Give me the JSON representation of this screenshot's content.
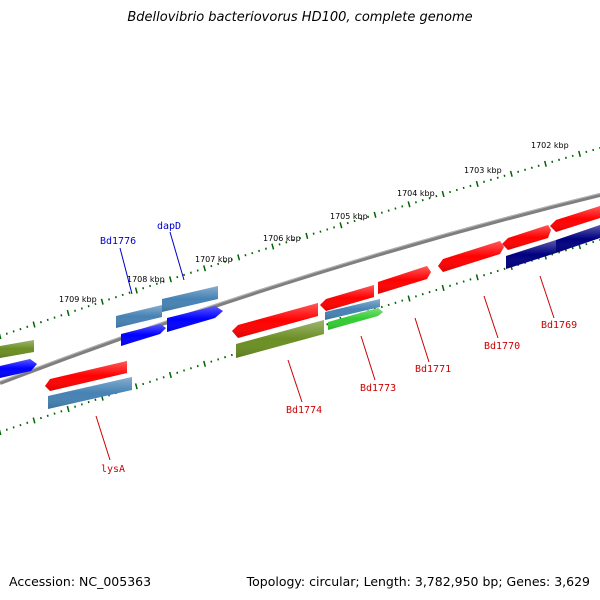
{
  "title": "Bdellovibrio bacteriovorus HD100, complete genome",
  "footer": {
    "accession": "Accession: NC_005363",
    "summary": "Topology: circular; Length: 3,782,950 bp; Genes: 3,629"
  },
  "scale_ticks": [
    {
      "label": "1702 kbp"
    },
    {
      "label": "1703 kbp"
    },
    {
      "label": "1704 kbp"
    },
    {
      "label": "1705 kbp"
    },
    {
      "label": "1706 kbp"
    },
    {
      "label": "1707 kbp"
    },
    {
      "label": "1708 kbp"
    },
    {
      "label": "1709 kbp"
    }
  ],
  "gene_labels": [
    {
      "text": "Bd1776",
      "color": "#0000cc"
    },
    {
      "text": "dapD",
      "color": "#0000cc"
    },
    {
      "text": "lysA",
      "color": "#cc0000"
    },
    {
      "text": "Bd1774",
      "color": "#cc0000"
    },
    {
      "text": "Bd1773",
      "color": "#cc0000"
    },
    {
      "text": "Bd1771",
      "color": "#cc0000"
    },
    {
      "text": "Bd1770",
      "color": "#cc0000"
    },
    {
      "text": "Bd1769",
      "color": "#cc0000"
    }
  ],
  "colors": {
    "red": "#ff0000",
    "blue": "#0000ff",
    "steelblue": "#4682b4",
    "olive": "#6b8e23",
    "navy": "#000080",
    "green": "#33cc33",
    "backbone": "#7f7f7f",
    "tick": "#006400"
  }
}
